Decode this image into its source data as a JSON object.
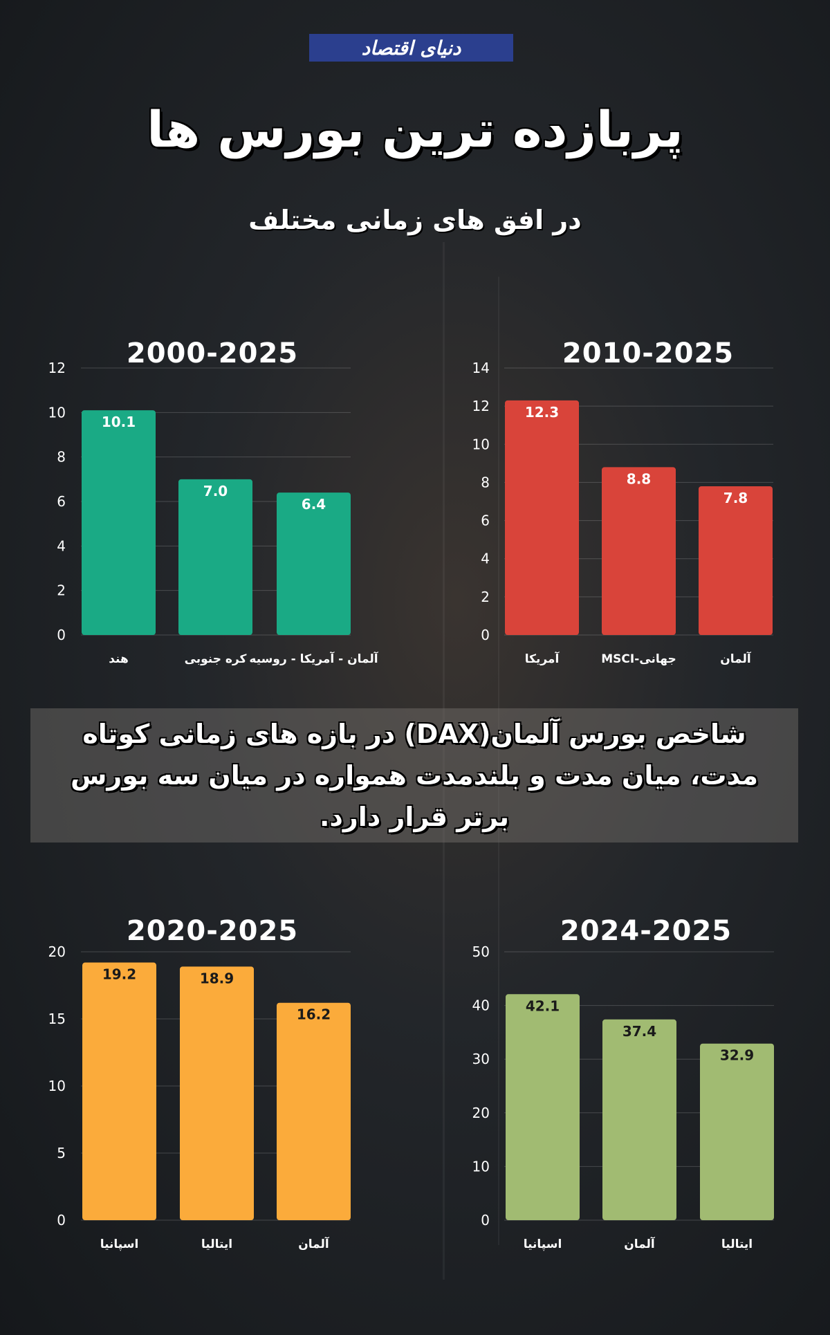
{
  "logo_text": "دنیای اقتصاد",
  "title": "پربازده ترین بورس ها",
  "subtitle": "در افق های زمانی مختلف",
  "banner": "شاخص بورس آلمان(DAX) در بازه های زمانی کوتاه مدت، میان مدت و بلندمدت همواره در میان سه بورس برتر قرار دارد.",
  "chart_data": [
    {
      "type": "bar",
      "title": "2000-2025",
      "categories": [
        "هند",
        "کره جنوبی",
        "آلمان - آمریکا - روسیه"
      ],
      "values": [
        10.1,
        7.0,
        6.4
      ],
      "labels": [
        "10.1",
        "7.0",
        "6.4"
      ],
      "ylim": [
        0,
        12
      ],
      "yticks": [
        0,
        2,
        4,
        6,
        8,
        10,
        12
      ],
      "color": "#1aaa85",
      "label_color": "#ffffff"
    },
    {
      "type": "bar",
      "title": "2010-2025",
      "categories": [
        "آمریکا",
        "جهانی-MSCI",
        "آلمان"
      ],
      "values": [
        12.3,
        8.8,
        7.8
      ],
      "labels": [
        "12.3",
        "8.8",
        "7.8"
      ],
      "ylim": [
        0,
        14
      ],
      "yticks": [
        0,
        2,
        4,
        6,
        8,
        10,
        12,
        14
      ],
      "color": "#d9443a",
      "label_color": "#ffffff"
    },
    {
      "type": "bar",
      "title": "2020-2025",
      "categories": [
        "اسپانیا",
        "ایتالیا",
        "آلمان"
      ],
      "values": [
        19.2,
        18.9,
        16.2
      ],
      "labels": [
        "19.2",
        "18.9",
        "16.2"
      ],
      "ylim": [
        0,
        20
      ],
      "yticks": [
        0,
        5,
        10,
        15,
        20
      ],
      "color": "#fbab3b",
      "label_color": "#1a1a1a"
    },
    {
      "type": "bar",
      "title": "2024-2025",
      "categories": [
        "اسپانیا",
        "آلمان",
        "ایتالیا"
      ],
      "values": [
        42.1,
        37.4,
        32.9
      ],
      "labels": [
        "42.1",
        "37.4",
        "32.9"
      ],
      "ylim": [
        0,
        50
      ],
      "yticks": [
        0,
        10,
        20,
        30,
        40,
        50
      ],
      "color": "#a1bb72",
      "label_color": "#1a1a1a"
    }
  ]
}
